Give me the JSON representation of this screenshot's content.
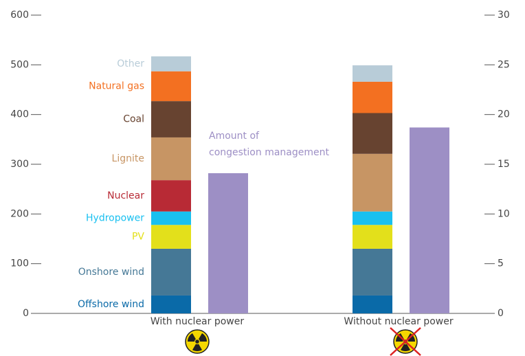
{
  "chart_data": {
    "type": "bar",
    "stacked": true,
    "categories": [
      "With nuclear power",
      "Without nuclear power"
    ],
    "ylim": [
      0,
      600
    ],
    "yticks": [
      0,
      100,
      200,
      300,
      400,
      500,
      600
    ],
    "y2lim": [
      0,
      30
    ],
    "y2ticks": [
      0,
      5,
      10,
      15,
      20,
      25,
      30
    ],
    "series": [
      {
        "name": "Offshore wind",
        "color": "#0a6aa8",
        "values": [
          36,
          36
        ]
      },
      {
        "name": "Onshore wind",
        "color": "#457896",
        "values": [
          94,
          94
        ]
      },
      {
        "name": "PV",
        "color": "#e3e01b",
        "values": [
          48,
          48
        ]
      },
      {
        "name": "Hydropower",
        "color": "#19c0f0",
        "values": [
          27,
          27
        ]
      },
      {
        "name": "Nuclear",
        "color": "#b82a35",
        "values": [
          63,
          0
        ]
      },
      {
        "name": "Lignite",
        "color": "#c79564",
        "values": [
          86,
          116
        ]
      },
      {
        "name": "Coal",
        "color": "#674330",
        "values": [
          73,
          82
        ]
      },
      {
        "name": "Natural gas",
        "color": "#f37021",
        "values": [
          60,
          63
        ]
      },
      {
        "name": "Other",
        "color": "#b8ccd8",
        "values": [
          30,
          33
        ]
      },
      {
        "name": [
          "Amount of",
          "congestion management"
        ],
        "color": "#9d8fc5",
        "axis": "y2",
        "values": [
          14.1,
          18.7
        ]
      }
    ]
  }
}
